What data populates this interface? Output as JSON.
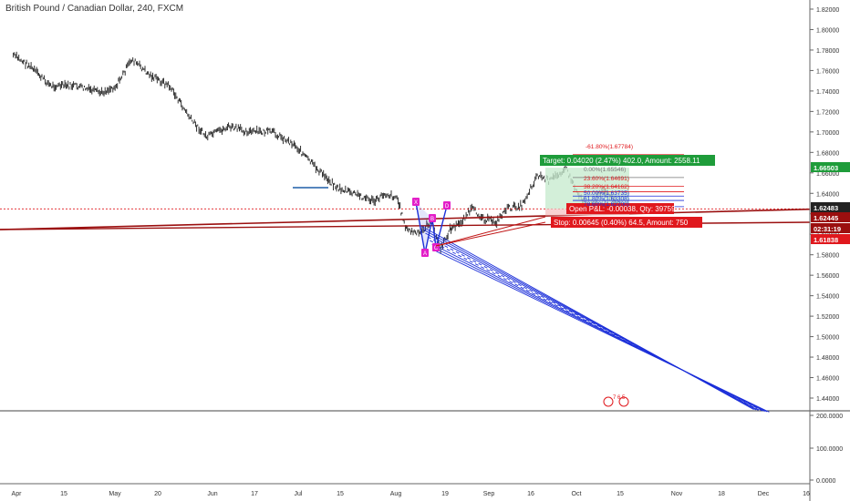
{
  "header": {
    "title": "British Pound / Canadian Dollar, 240, FXCM"
  },
  "colors": {
    "up": "#1f5fa8",
    "bar": "#1a1a1a",
    "target": "#1e9c3a",
    "stop": "#e0181d",
    "pattern": "#e31fc8",
    "channel": "#1c2fd9",
    "trend": "#9b0f0f"
  },
  "chart_data": {
    "type": "line",
    "price_scale_ticks": [
      "1.82000",
      "1.80000",
      "1.78000",
      "1.76000",
      "1.74000",
      "1.72000",
      "1.70000",
      "1.68000",
      "1.66000",
      "1.64000",
      "1.62000",
      "1.60000",
      "1.58000",
      "1.56000",
      "1.54000",
      "1.52000",
      "1.50000",
      "1.48000",
      "1.46000",
      "1.44000"
    ],
    "ylim": [
      1.43,
      1.825
    ],
    "volume_ticks": [
      "200.0000",
      "100.0000",
      "0.0000"
    ],
    "x_ticks": [
      "Apr",
      "15",
      "May",
      "20",
      "Jun",
      "17",
      "Jul",
      "15",
      "Aug",
      "19",
      "Sep",
      "16",
      "Oct",
      "15",
      "Nov",
      "18",
      "Dec",
      "16"
    ],
    "price_path": [
      {
        "x": "Mar 31",
        "y": 1.775
      },
      {
        "x": "Apr 5",
        "y": 1.765
      },
      {
        "x": "Apr 12",
        "y": 1.745
      },
      {
        "x": "Apr 20",
        "y": 1.745
      },
      {
        "x": "Apr 28",
        "y": 1.738
      },
      {
        "x": "May 3",
        "y": 1.745
      },
      {
        "x": "May 8",
        "y": 1.771
      },
      {
        "x": "May 14",
        "y": 1.755
      },
      {
        "x": "May 20",
        "y": 1.745
      },
      {
        "x": "May 27",
        "y": 1.712
      },
      {
        "x": "Jun 1",
        "y": 1.695
      },
      {
        "x": "Jun 8",
        "y": 1.705
      },
      {
        "x": "Jun 15",
        "y": 1.7
      },
      {
        "x": "Jun 22",
        "y": 1.7
      },
      {
        "x": "Jun 29",
        "y": 1.688
      },
      {
        "x": "Jul 6",
        "y": 1.665
      },
      {
        "x": "Jul 13",
        "y": 1.645
      },
      {
        "x": "Jul 18",
        "y": 1.64
      },
      {
        "x": "Jul 25",
        "y": 1.632
      },
      {
        "x": "Jul 28",
        "y": 1.64
      },
      {
        "x": "Aug 1",
        "y": 1.636
      },
      {
        "x": "Aug 4",
        "y": 1.605
      },
      {
        "x": "Aug 8",
        "y": 1.6
      },
      {
        "x": "Aug 12",
        "y": 1.613
      },
      {
        "x": "Aug 15",
        "y": 1.585
      },
      {
        "x": "Aug 18",
        "y": 1.605
      },
      {
        "x": "Aug 21",
        "y": 1.61
      },
      {
        "x": "Aug 25",
        "y": 1.625
      },
      {
        "x": "Aug 29",
        "y": 1.615
      },
      {
        "x": "Sep 2",
        "y": 1.612
      },
      {
        "x": "Sep 5",
        "y": 1.625
      },
      {
        "x": "Sep 10",
        "y": 1.628
      },
      {
        "x": "Sep 15",
        "y": 1.658
      },
      {
        "x": "Sep 19",
        "y": 1.652
      },
      {
        "x": "Sep 24",
        "y": 1.665
      },
      {
        "x": "Sep 28",
        "y": 1.64
      },
      {
        "x": "Oct 2",
        "y": 1.625
      },
      {
        "x": "Oct 6",
        "y": 1.645
      },
      {
        "x": "Oct 10",
        "y": 1.63
      },
      {
        "x": "Oct 12",
        "y": 1.626
      }
    ],
    "price_labels": [
      {
        "text": "1.66503",
        "kind": "target"
      },
      {
        "text": "1.62483",
        "kind": "current"
      },
      {
        "text": "1.62445",
        "kind": "trend"
      },
      {
        "text": "02:31:19",
        "kind": "countdown"
      },
      {
        "text": "1.61838",
        "kind": "stop"
      }
    ],
    "annotations": {
      "target_box": "Target: 0.04020 (2.47%) 402.0, Amount: 2558.11",
      "stop_box": "Stop: 0.00645 (0.40%) 64.5, Amount: 750",
      "pnl_box": "Open P&L: -0.00038, Qty: 39759",
      "fib_levels": [
        "-61.80%(1.67784)",
        "0.00%(1.65546)",
        "23.60%(1.64691)",
        "38.20%(1.64162)",
        "50.00%(1.63735)",
        "61.80%(1.63308)",
        "78.60%(1.62700)"
      ],
      "pattern_points": [
        "X",
        "A",
        "B",
        "C",
        "D"
      ],
      "stamp": "7 6 5"
    }
  }
}
